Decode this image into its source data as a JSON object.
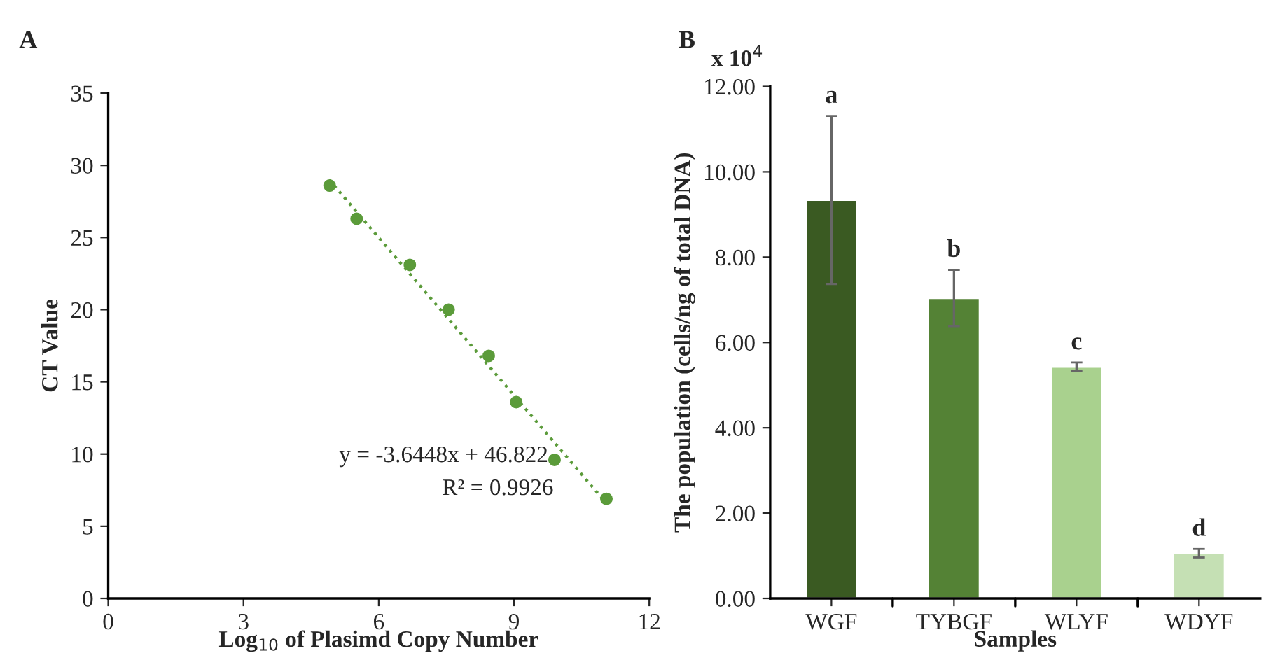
{
  "chart_data": [
    {
      "type": "scatter",
      "title": "A",
      "xlabel": "Log$_{10}$ of Plasimd Copy Number",
      "ylabel": "CT Value",
      "xlim": [
        0,
        12
      ],
      "xticks": [
        0,
        3,
        6,
        9,
        12
      ],
      "ylim": [
        0,
        35
      ],
      "yticks": [
        0,
        5,
        10,
        15,
        20,
        25,
        30,
        35
      ],
      "grid": false,
      "legend": false,
      "series": [
        {
          "type": "scatter",
          "color": "#5b9b3a",
          "marker": "circle",
          "x": [
            4.91,
            5.51,
            6.69,
            7.55,
            8.44,
            9.05,
            9.9,
            11.05
          ],
          "values": [
            28.6,
            26.3,
            23.1,
            20.0,
            16.8,
            13.6,
            9.6,
            6.9
          ]
        },
        {
          "type": "line",
          "color": "#5b9b3a",
          "marker": "none",
          "line_style": "dotted",
          "x": [
            4.9,
            11.05
          ],
          "values": [
            29.0,
            6.6
          ]
        }
      ],
      "annotations": [
        "y = -3.6448x + 46.822",
        "R² = 0.9926"
      ]
    },
    {
      "type": "bar",
      "title": "B",
      "xlabel": "Samples",
      "ylabel": "The population (cells/ng of total DNA)",
      "categories": [
        "WGF",
        "TYBGF",
        "WLYF",
        "WDYF"
      ],
      "values": [
        9.34,
        7.04,
        5.43,
        1.06
      ],
      "errors": [
        1.97,
        0.66,
        0.1,
        0.1
      ],
      "colors": [
        "#3a5a22",
        "#548235",
        "#a9d18e",
        "#c5e0b4"
      ],
      "ylim": [
        0,
        12
      ],
      "yticks": [
        {
          "value": 0,
          "label": "0.00"
        },
        {
          "value": 2,
          "label": "2.00"
        },
        {
          "value": 4,
          "label": "4.00"
        },
        {
          "value": 6,
          "label": "6.00"
        },
        {
          "value": 8,
          "label": "8.00"
        },
        {
          "value": 10,
          "label": "10.00"
        },
        {
          "value": 12,
          "label": "12.00"
        }
      ],
      "grid": false,
      "legend": false,
      "annotations": [
        "a",
        "b",
        "c",
        "d",
        "x 10$^{4}$"
      ]
    }
  ]
}
